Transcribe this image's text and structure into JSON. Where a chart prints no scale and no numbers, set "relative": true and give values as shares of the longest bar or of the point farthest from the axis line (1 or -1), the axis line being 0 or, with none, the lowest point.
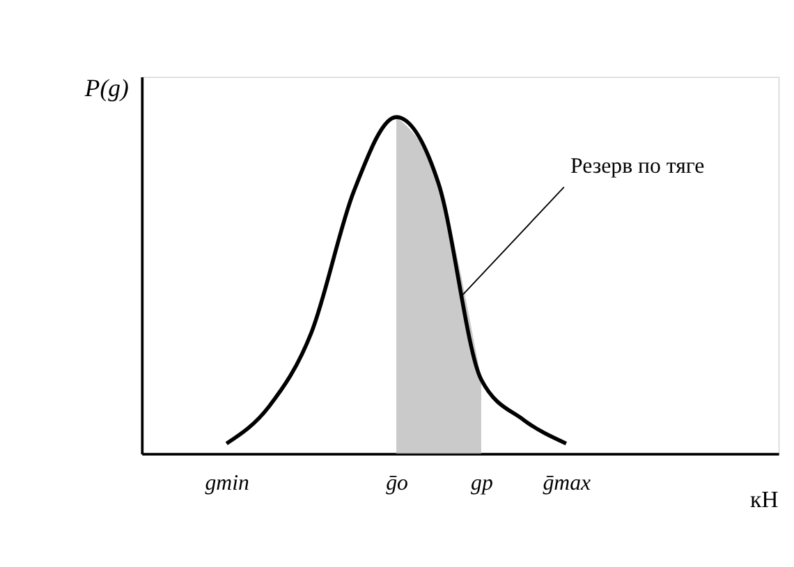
{
  "chart_data": {
    "type": "line",
    "relative": true,
    "ylabel": "P(g)",
    "xlabel": "кН",
    "categories": [
      null,
      null,
      "gmin",
      null,
      null,
      null,
      "ḡо",
      null,
      "gр",
      null,
      "ḡmax",
      null,
      null,
      null,
      null,
      null
    ],
    "series": [
      {
        "type": "area",
        "color": "#bdbdbd",
        "values": [
          null,
          null,
          null,
          null,
          null,
          null,
          1.0,
          0.8,
          0.22,
          null,
          null,
          null,
          null,
          null,
          null,
          null
        ]
      },
      {
        "color": "#000000",
        "values": [
          null,
          null,
          0.03,
          0.14,
          0.36,
          0.78,
          1.0,
          0.8,
          0.22,
          0.1,
          0.03,
          null,
          null,
          null,
          null,
          null
        ]
      }
    ],
    "annotations": [
      "Резерв по тяге"
    ],
    "tick_labels": "x",
    "grid": false,
    "marker": "none",
    "line_style": "solid"
  }
}
